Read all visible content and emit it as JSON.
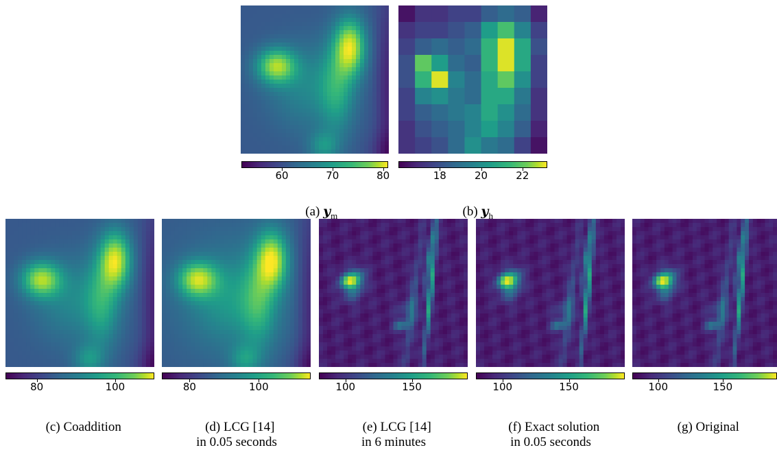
{
  "figures": [
    {
      "id": "a",
      "caption_prefix": "(a)",
      "caption_symbol": "y",
      "caption_sub": "m",
      "caption_rest": "",
      "colorbar_ticks": [
        "60",
        "70",
        "80"
      ],
      "tick_values": [
        60,
        70,
        80
      ],
      "range": [
        52,
        81
      ],
      "kind": "smooth"
    },
    {
      "id": "b",
      "caption_prefix": "(b)",
      "caption_symbol": "y",
      "caption_sub": "h",
      "caption_rest": "",
      "colorbar_ticks": [
        "18",
        "20",
        "22"
      ],
      "tick_values": [
        18,
        20,
        22
      ],
      "range": [
        16,
        23.2
      ],
      "kind": "coarse"
    },
    {
      "id": "c",
      "caption_prefix": "(c)",
      "caption_rest": "Coaddition",
      "colorbar_ticks": [
        "80",
        "100"
      ],
      "tick_values": [
        80,
        100
      ],
      "range": [
        72,
        110
      ],
      "kind": "smooth"
    },
    {
      "id": "d",
      "caption_prefix": "(d)",
      "caption_rest": "LCG [14]\nin 0.05 seconds",
      "colorbar_ticks": [
        "80",
        "100"
      ],
      "tick_values": [
        80,
        100
      ],
      "range": [
        72,
        115
      ],
      "kind": "smooth2"
    },
    {
      "id": "e",
      "caption_prefix": "(e)",
      "caption_rest": "LCG [14]\nin 6 minutes",
      "colorbar_ticks": [
        "100",
        "150"
      ],
      "tick_values": [
        100,
        150
      ],
      "range": [
        80,
        192
      ],
      "kind": "sharp"
    },
    {
      "id": "f",
      "caption_prefix": "(f)",
      "caption_rest": "Exact solution\nin 0.05 seconds",
      "colorbar_ticks": [
        "100",
        "150"
      ],
      "tick_values": [
        100,
        150
      ],
      "range": [
        80,
        192
      ],
      "kind": "sharp"
    },
    {
      "id": "g",
      "caption_prefix": "(g)",
      "caption_rest": "Original",
      "colorbar_ticks": [
        "100",
        "150"
      ],
      "tick_values": [
        100,
        150
      ],
      "range": [
        80,
        192
      ],
      "kind": "sharp"
    }
  ],
  "colormap": "viridis"
}
